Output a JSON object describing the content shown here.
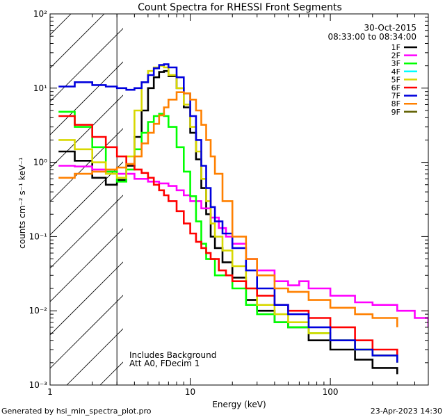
{
  "chart_data": {
    "type": "line",
    "title": "Count Spectra for RHESSI Front Segments",
    "xlabel": "Energy (keV)",
    "ylabel": "counts cm⁻² s⁻¹ keV⁻¹",
    "xscale": "log",
    "yscale": "log",
    "xlim": [
      1,
      500
    ],
    "ylim": [
      0.001,
      100
    ],
    "x_tick_labels": [
      "1",
      "10",
      "100"
    ],
    "y_tick_labels": [
      "10⁻³",
      "10⁻²",
      "10⁻¹",
      "10⁰",
      "10¹",
      "10²"
    ],
    "date": "30-Oct-2015",
    "time_range": "08:33:00 to 08:34:00",
    "hatched_region_kev": [
      1,
      3
    ],
    "annotations": [
      "Includes Background",
      "Att A0, FDecim 1"
    ],
    "footer_left": "Generated by hsi_min_spectra_plot.pro",
    "footer_right": "23-Apr-2023 14:30",
    "series": [
      {
        "name": "1F",
        "color": "#000000",
        "points": [
          [
            1.15,
            1.4
          ],
          [
            1.5,
            1.05
          ],
          [
            2.0,
            0.62
          ],
          [
            2.5,
            0.5
          ],
          [
            3.0,
            0.58
          ],
          [
            3.5,
            0.9
          ],
          [
            4.0,
            2.2
          ],
          [
            4.5,
            5.0
          ],
          [
            5.0,
            10.0
          ],
          [
            5.5,
            14.0
          ],
          [
            6.0,
            16.5
          ],
          [
            6.5,
            17.0
          ],
          [
            7.0,
            14.5
          ],
          [
            8.0,
            10.0
          ],
          [
            9.0,
            5.5
          ],
          [
            10.0,
            2.5
          ],
          [
            11.0,
            1.1
          ],
          [
            12.0,
            0.45
          ],
          [
            13.0,
            0.2
          ],
          [
            14.0,
            0.1
          ],
          [
            15.0,
            0.07
          ],
          [
            17.0,
            0.045
          ],
          [
            20.0,
            0.028
          ],
          [
            25.0,
            0.014
          ],
          [
            30.0,
            0.01
          ],
          [
            40.0,
            0.007
          ],
          [
            50.0,
            0.006
          ],
          [
            70.0,
            0.004
          ],
          [
            100.0,
            0.003
          ],
          [
            150.0,
            0.0022
          ],
          [
            200.0,
            0.0017
          ],
          [
            300.0,
            0.0014
          ]
        ]
      },
      {
        "name": "2F",
        "color": "#ff00ff",
        "points": [
          [
            1.15,
            0.9
          ],
          [
            1.5,
            0.88
          ],
          [
            2.0,
            0.8
          ],
          [
            2.5,
            0.75
          ],
          [
            3.0,
            0.7
          ],
          [
            4.0,
            0.6
          ],
          [
            5.0,
            0.55
          ],
          [
            6.0,
            0.52
          ],
          [
            7.0,
            0.48
          ],
          [
            8.0,
            0.42
          ],
          [
            9.0,
            0.36
          ],
          [
            10.0,
            0.3
          ],
          [
            12.0,
            0.24
          ],
          [
            14.0,
            0.18
          ],
          [
            16.0,
            0.13
          ],
          [
            18.0,
            0.1
          ],
          [
            20.0,
            0.08
          ],
          [
            25.0,
            0.05
          ],
          [
            30.0,
            0.035
          ],
          [
            40.0,
            0.025
          ],
          [
            50.0,
            0.022
          ],
          [
            60.0,
            0.025
          ],
          [
            70.0,
            0.02
          ],
          [
            100.0,
            0.016
          ],
          [
            150.0,
            0.013
          ],
          [
            200.0,
            0.012
          ],
          [
            300.0,
            0.01
          ],
          [
            400.0,
            0.008
          ],
          [
            500.0,
            0.006
          ]
        ]
      },
      {
        "name": "3F",
        "color": "#00ff00",
        "points": [
          [
            1.15,
            4.8
          ],
          [
            1.5,
            3.0
          ],
          [
            2.0,
            1.6
          ],
          [
            2.5,
            0.75
          ],
          [
            3.0,
            0.55
          ],
          [
            3.5,
            0.8
          ],
          [
            4.0,
            1.5
          ],
          [
            4.5,
            2.5
          ],
          [
            5.0,
            3.5
          ],
          [
            5.5,
            4.2
          ],
          [
            6.0,
            4.5
          ],
          [
            6.5,
            4.2
          ],
          [
            7.0,
            3.0
          ],
          [
            8.0,
            1.6
          ],
          [
            9.0,
            0.75
          ],
          [
            10.0,
            0.35
          ],
          [
            11.0,
            0.16
          ],
          [
            12.0,
            0.08
          ],
          [
            13.0,
            0.05
          ],
          [
            15.0,
            0.03
          ],
          [
            20.0,
            0.02
          ],
          [
            25.0,
            0.012
          ],
          [
            30.0,
            0.009
          ],
          [
            40.0,
            0.007
          ],
          [
            50.0,
            0.006
          ],
          [
            70.0,
            0.005
          ],
          [
            100.0,
            0.004
          ],
          [
            150.0,
            0.003
          ],
          [
            200.0,
            0.0025
          ],
          [
            300.0,
            0.002
          ]
        ]
      },
      {
        "name": "4F",
        "color": "#00ffff",
        "points": []
      },
      {
        "name": "5F",
        "color": "#d8d800",
        "points": [
          [
            1.15,
            2.0
          ],
          [
            1.5,
            1.5
          ],
          [
            2.0,
            1.0
          ],
          [
            2.5,
            0.7
          ],
          [
            3.0,
            0.62
          ],
          [
            3.5,
            1.2
          ],
          [
            4.0,
            5.0
          ],
          [
            4.5,
            12.0
          ],
          [
            5.0,
            17.0
          ],
          [
            5.5,
            19.0
          ],
          [
            6.0,
            20.0
          ],
          [
            6.5,
            19.0
          ],
          [
            7.0,
            15.0
          ],
          [
            8.0,
            10.0
          ],
          [
            9.0,
            6.0
          ],
          [
            10.0,
            3.0
          ],
          [
            11.0,
            1.4
          ],
          [
            12.0,
            0.6
          ],
          [
            13.0,
            0.3
          ],
          [
            14.0,
            0.15
          ],
          [
            15.0,
            0.1
          ],
          [
            17.0,
            0.065
          ],
          [
            20.0,
            0.04
          ],
          [
            25.0,
            0.02
          ],
          [
            30.0,
            0.012
          ],
          [
            40.0,
            0.009
          ],
          [
            50.0,
            0.007
          ],
          [
            70.0,
            0.005
          ],
          [
            100.0,
            0.004
          ],
          [
            150.0,
            0.003
          ],
          [
            200.0,
            0.0025
          ],
          [
            300.0,
            0.002
          ]
        ]
      },
      {
        "name": "6F",
        "color": "#ff0000",
        "points": [
          [
            1.15,
            4.2
          ],
          [
            1.5,
            3.2
          ],
          [
            2.0,
            2.2
          ],
          [
            2.5,
            1.6
          ],
          [
            3.0,
            1.2
          ],
          [
            3.5,
            0.95
          ],
          [
            4.0,
            0.8
          ],
          [
            4.5,
            0.72
          ],
          [
            5.0,
            0.62
          ],
          [
            5.5,
            0.5
          ],
          [
            6.0,
            0.42
          ],
          [
            6.5,
            0.36
          ],
          [
            7.0,
            0.3
          ],
          [
            8.0,
            0.22
          ],
          [
            9.0,
            0.15
          ],
          [
            10.0,
            0.11
          ],
          [
            11.0,
            0.085
          ],
          [
            12.0,
            0.07
          ],
          [
            13.0,
            0.06
          ],
          [
            14.0,
            0.05
          ],
          [
            16.0,
            0.035
          ],
          [
            18.0,
            0.03
          ],
          [
            20.0,
            0.025
          ],
          [
            25.0,
            0.02
          ],
          [
            30.0,
            0.016
          ],
          [
            40.0,
            0.012
          ],
          [
            50.0,
            0.01
          ],
          [
            70.0,
            0.008
          ],
          [
            100.0,
            0.006
          ],
          [
            150.0,
            0.004
          ],
          [
            200.0,
            0.003
          ],
          [
            300.0,
            0.0025
          ]
        ]
      },
      {
        "name": "7F",
        "color": "#0000dd",
        "points": [
          [
            1.15,
            10.5
          ],
          [
            1.5,
            12.0
          ],
          [
            2.0,
            11.0
          ],
          [
            2.5,
            10.5
          ],
          [
            3.0,
            10.0
          ],
          [
            3.5,
            9.5
          ],
          [
            4.0,
            10.0
          ],
          [
            4.5,
            12.0
          ],
          [
            5.0,
            15.0
          ],
          [
            5.5,
            18.5
          ],
          [
            6.0,
            20.5
          ],
          [
            6.5,
            21.0
          ],
          [
            7.0,
            19.0
          ],
          [
            8.0,
            14.0
          ],
          [
            9.0,
            8.5
          ],
          [
            10.0,
            4.2
          ],
          [
            11.0,
            2.0
          ],
          [
            12.0,
            0.9
          ],
          [
            13.0,
            0.45
          ],
          [
            14.0,
            0.25
          ],
          [
            15.0,
            0.16
          ],
          [
            17.0,
            0.11
          ],
          [
            20.0,
            0.07
          ],
          [
            25.0,
            0.035
          ],
          [
            30.0,
            0.02
          ],
          [
            40.0,
            0.012
          ],
          [
            50.0,
            0.009
          ],
          [
            70.0,
            0.006
          ],
          [
            100.0,
            0.004
          ],
          [
            150.0,
            0.003
          ],
          [
            200.0,
            0.0025
          ],
          [
            300.0,
            0.002
          ]
        ]
      },
      {
        "name": "8F",
        "color": "#ff8000",
        "points": [
          [
            1.15,
            0.62
          ],
          [
            1.5,
            0.7
          ],
          [
            2.0,
            0.75
          ],
          [
            2.5,
            0.8
          ],
          [
            3.0,
            0.85
          ],
          [
            3.5,
            0.95
          ],
          [
            4.0,
            1.2
          ],
          [
            4.5,
            1.8
          ],
          [
            5.0,
            2.5
          ],
          [
            5.5,
            3.3
          ],
          [
            6.0,
            4.3
          ],
          [
            6.5,
            5.5
          ],
          [
            7.0,
            7.0
          ],
          [
            8.0,
            8.8
          ],
          [
            9.0,
            8.5
          ],
          [
            10.0,
            7.0
          ],
          [
            11.0,
            5.0
          ],
          [
            12.0,
            3.2
          ],
          [
            13.0,
            2.0
          ],
          [
            14.0,
            1.2
          ],
          [
            15.0,
            0.7
          ],
          [
            17.0,
            0.3
          ],
          [
            20.0,
            0.1
          ],
          [
            25.0,
            0.05
          ],
          [
            30.0,
            0.03
          ],
          [
            40.0,
            0.02
          ],
          [
            50.0,
            0.018
          ],
          [
            70.0,
            0.014
          ],
          [
            100.0,
            0.011
          ],
          [
            150.0,
            0.009
          ],
          [
            200.0,
            0.008
          ],
          [
            300.0,
            0.006
          ]
        ]
      },
      {
        "name": "9F",
        "color": "#606000",
        "points": []
      }
    ]
  }
}
